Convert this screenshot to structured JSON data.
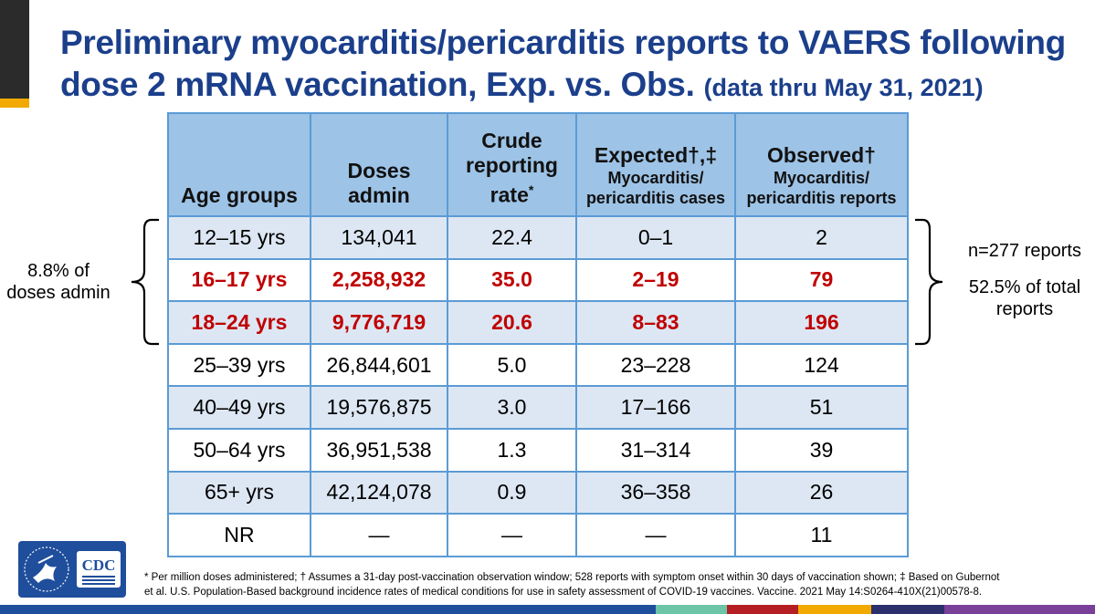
{
  "title": {
    "main": "Preliminary myocarditis/pericarditis reports to VAERS following dose 2 mRNA vaccination, Exp. vs. Obs.",
    "sub": "(data thru May 31, 2021)"
  },
  "table": {
    "headers": {
      "age": "Age groups",
      "doses_line1": "Doses",
      "doses_line2": "admin",
      "crude_line1": "Crude",
      "crude_line2": "reporting",
      "crude_line3": "rate",
      "crude_mark": "*",
      "expected_line1": "Expected†,‡",
      "expected_line2": "Myocarditis/",
      "expected_line3": "pericarditis cases",
      "observed_line1": "Observed†",
      "observed_line2": "Myocarditis/",
      "observed_line3": "pericarditis reports"
    },
    "rows": [
      {
        "age": "12–15 yrs",
        "doses": "134,041",
        "rate": "22.4",
        "expected": "0–1",
        "observed": "2"
      },
      {
        "age": "16–17 yrs",
        "doses": "2,258,932",
        "rate": "35.0",
        "expected": "2–19",
        "observed": "79"
      },
      {
        "age": "18–24 yrs",
        "doses": "9,776,719",
        "rate": "20.6",
        "expected": "8–83",
        "observed": "196"
      },
      {
        "age": "25–39 yrs",
        "doses": "26,844,601",
        "rate": "5.0",
        "expected": "23–228",
        "observed": "124"
      },
      {
        "age": "40–49 yrs",
        "doses": "19,576,875",
        "rate": "3.0",
        "expected": "17–166",
        "observed": "51"
      },
      {
        "age": "50–64 yrs",
        "doses": "36,951,538",
        "rate": "1.3",
        "expected": "31–314",
        "observed": "39"
      },
      {
        "age": "65+ yrs",
        "doses": "42,124,078",
        "rate": "0.9",
        "expected": "36–358",
        "observed": "26"
      },
      {
        "age": "NR",
        "doses": "—",
        "rate": "—",
        "expected": "—",
        "observed": "11"
      }
    ],
    "highlight_color": "#c00000",
    "header_color": "#9dc3e6",
    "band_color": "#dde7f3",
    "border_color": "#5b9bd5"
  },
  "annotations": {
    "left_line1": "8.8% of",
    "left_line2": "doses admin",
    "right_line1": "n=277 reports",
    "right_line2": "52.5% of total",
    "right_line3": "reports"
  },
  "footnote": {
    "line1": "* Per million doses administered; † Assumes a 31-day post-vaccination observation window; 528 reports with symptom onset within 30 days of vaccination shown; ‡ Based on Gubernot",
    "line2": "et al. U.S. Population-Based background incidence rates of medical conditions for use in safety assessment of COVID-19 vaccines. Vaccine. 2021 May 14:S0264-410X(21)00578-8."
  },
  "logo": {
    "text": "CDC",
    "icon": "hhs-eagle-icon"
  },
  "theme": {
    "title_color": "#1b3f8b",
    "accent_dark": "#2b2b2b",
    "accent_gold": "#f2a900",
    "bottom_bar_colors": [
      "#1f4e9c",
      "#6cc5a6",
      "#b51f24",
      "#f2a900",
      "#2b2f6b",
      "#7a3f98"
    ]
  }
}
